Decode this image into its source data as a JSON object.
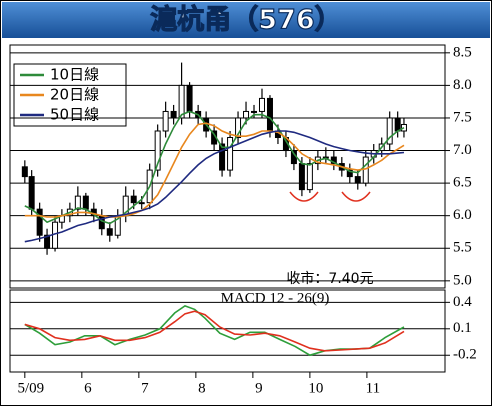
{
  "chart_data": [
    {
      "type": "candlestick",
      "title": "滬杭甬（576）",
      "annotation": "收市：7.40元",
      "candle_color": "#000000",
      "grid": true,
      "xlim": [
        4.74,
        12.37
      ],
      "ylim": [
        4.89,
        8.62
      ],
      "yticks": [
        8.5,
        {
          "value": 8,
          "label": "8.0"
        },
        7.5,
        {
          "value": 7,
          "label": "7.0"
        },
        6.5,
        {
          "value": 6,
          "label": "6.0"
        },
        5.5,
        {
          "value": 5,
          "label": "5.0"
        }
      ],
      "x": [
        5.0,
        5.12,
        5.26,
        5.39,
        5.53,
        5.65,
        5.79,
        5.93,
        6.07,
        6.21,
        6.35,
        6.49,
        6.63,
        6.77,
        6.91,
        7.05,
        7.19,
        7.33,
        7.47,
        7.61,
        7.75,
        7.89,
        8.04,
        8.18,
        8.32,
        8.46,
        8.6,
        8.74,
        8.88,
        9.02,
        9.16,
        9.3,
        9.44,
        9.58,
        9.72,
        9.86,
        10.0,
        10.14,
        10.28,
        10.42,
        10.56,
        10.7,
        10.84,
        10.98,
        11.12,
        11.26,
        11.4,
        11.54,
        11.65
      ],
      "open": [
        6.75,
        6.6,
        6.1,
        5.7,
        5.5,
        5.9,
        6.0,
        6.1,
        6.3,
        6.1,
        6.0,
        5.8,
        5.7,
        6.0,
        6.3,
        6.2,
        6.2,
        6.7,
        7.3,
        7.6,
        7.5,
        8.0,
        7.6,
        7.5,
        7.3,
        7.1,
        6.7,
        7.2,
        7.5,
        7.6,
        7.6,
        7.8,
        7.3,
        7.2,
        7.0,
        6.8,
        6.4,
        6.8,
        6.9,
        6.9,
        6.8,
        6.7,
        6.6,
        6.5,
        6.9,
        7.0,
        7.1,
        7.5,
        7.3
      ],
      "high": [
        6.85,
        6.7,
        6.2,
        5.8,
        6.0,
        6.1,
        6.2,
        6.45,
        6.35,
        6.2,
        6.1,
        5.9,
        6.1,
        6.45,
        6.4,
        6.3,
        6.8,
        7.4,
        7.75,
        7.7,
        8.35,
        8.05,
        7.7,
        7.6,
        7.4,
        7.2,
        7.3,
        7.6,
        7.75,
        7.7,
        7.95,
        7.85,
        7.4,
        7.3,
        7.1,
        6.9,
        6.9,
        7.0,
        7.05,
        7.0,
        6.9,
        6.8,
        6.7,
        7.0,
        7.1,
        7.2,
        7.6,
        7.6,
        7.5
      ],
      "low": [
        6.5,
        6.0,
        5.6,
        5.4,
        5.45,
        5.8,
        5.9,
        6.0,
        6.0,
        5.9,
        5.7,
        5.6,
        5.65,
        5.9,
        6.1,
        6.1,
        6.1,
        6.6,
        7.2,
        7.4,
        7.4,
        7.5,
        7.4,
        7.2,
        7.0,
        6.6,
        6.6,
        7.1,
        7.4,
        7.5,
        7.5,
        7.2,
        7.1,
        6.9,
        6.7,
        6.3,
        6.35,
        6.7,
        6.8,
        6.7,
        6.6,
        6.5,
        6.4,
        6.45,
        6.8,
        6.9,
        7.0,
        7.2,
        7.2
      ],
      "close": [
        6.6,
        6.1,
        5.7,
        5.5,
        5.9,
        6.0,
        6.1,
        6.3,
        6.1,
        6.0,
        5.8,
        5.7,
        6.0,
        6.3,
        6.2,
        6.2,
        6.7,
        7.3,
        7.6,
        7.5,
        8.0,
        7.6,
        7.5,
        7.3,
        7.1,
        6.7,
        7.2,
        7.5,
        7.6,
        7.6,
        7.8,
        7.3,
        7.2,
        7.0,
        6.8,
        6.4,
        6.8,
        6.9,
        6.9,
        6.8,
        6.7,
        6.6,
        6.5,
        6.9,
        7.0,
        7.1,
        7.5,
        7.3,
        7.4
      ],
      "lines": [
        {
          "name": "10日線",
          "color": "#2e8b3a",
          "values": [
            6.15,
            6.1,
            6.0,
            5.9,
            5.95,
            6.0,
            6.05,
            6.12,
            6.1,
            6.02,
            5.92,
            5.88,
            5.95,
            6.05,
            6.15,
            6.25,
            6.45,
            6.8,
            7.1,
            7.35,
            7.55,
            7.6,
            7.55,
            7.4,
            7.25,
            7.05,
            7.05,
            7.25,
            7.45,
            7.55,
            7.55,
            7.5,
            7.35,
            7.15,
            6.95,
            6.8,
            6.78,
            6.85,
            6.88,
            6.82,
            6.75,
            6.68,
            6.66,
            6.78,
            6.9,
            7.05,
            7.2,
            7.3,
            7.35
          ]
        },
        {
          "name": "20日線",
          "color": "#e8871e",
          "values": [
            6.0,
            6.0,
            6.0,
            5.98,
            5.98,
            6.0,
            6.02,
            6.05,
            6.05,
            6.03,
            6.0,
            5.98,
            5.98,
            6.0,
            6.03,
            6.08,
            6.18,
            6.32,
            6.55,
            6.8,
            7.05,
            7.25,
            7.4,
            7.42,
            7.38,
            7.3,
            7.25,
            7.22,
            7.22,
            7.25,
            7.3,
            7.3,
            7.28,
            7.2,
            7.08,
            6.95,
            6.88,
            6.82,
            6.8,
            6.78,
            6.75,
            6.72,
            6.7,
            6.72,
            6.78,
            6.85,
            6.95,
            7.02,
            7.08
          ]
        },
        {
          "name": "50日線",
          "color": "#1f2a80",
          "values": [
            5.6,
            5.62,
            5.65,
            5.68,
            5.72,
            5.75,
            5.8,
            5.85,
            5.88,
            5.92,
            5.95,
            5.98,
            6.0,
            6.02,
            6.05,
            6.08,
            6.12,
            6.18,
            6.28,
            6.4,
            6.52,
            6.65,
            6.78,
            6.88,
            6.95,
            7.0,
            7.05,
            7.1,
            7.15,
            7.2,
            7.25,
            7.28,
            7.3,
            7.3,
            7.28,
            7.24,
            7.2,
            7.15,
            7.1,
            7.06,
            7.03,
            7.0,
            6.98,
            6.96,
            6.95,
            6.95,
            6.95,
            6.96,
            6.97
          ]
        }
      ]
    },
    {
      "type": "line",
      "title": "MACD 12 - 26(9)",
      "grid": true,
      "xlim": [
        4.74,
        12.37
      ],
      "ylim": [
        -0.39,
        0.54
      ],
      "xticks": [
        {
          "value": 5,
          "label": "5/09"
        },
        6,
        7,
        8,
        9,
        10,
        11
      ],
      "yticks": [
        0.4,
        0.1,
        -0.2
      ],
      "x": [
        5.0,
        5.26,
        5.53,
        5.79,
        6.05,
        6.32,
        6.58,
        6.84,
        7.11,
        7.37,
        7.63,
        7.81,
        7.98,
        8.16,
        8.42,
        8.68,
        8.95,
        9.21,
        9.47,
        9.74,
        10.0,
        10.26,
        10.53,
        10.79,
        11.05,
        11.32,
        11.65
      ],
      "series": [
        {
          "color": "#2e9e3a",
          "values": [
            0.15,
            0.05,
            -0.08,
            -0.05,
            0.02,
            0.02,
            -0.08,
            -0.02,
            0.03,
            0.1,
            0.28,
            0.36,
            0.32,
            0.22,
            0.05,
            -0.02,
            0.06,
            0.06,
            -0.02,
            -0.1,
            -0.2,
            -0.15,
            -0.13,
            -0.13,
            -0.12,
            0.0,
            0.12
          ]
        },
        {
          "color": "#e0301e",
          "values": [
            0.15,
            0.1,
            0.0,
            -0.03,
            -0.02,
            0.02,
            -0.03,
            -0.03,
            0.0,
            0.06,
            0.18,
            0.27,
            0.3,
            0.26,
            0.12,
            0.04,
            0.03,
            0.05,
            0.02,
            -0.05,
            -0.12,
            -0.15,
            -0.14,
            -0.13,
            -0.12,
            -0.06,
            0.07
          ]
        }
      ]
    }
  ]
}
